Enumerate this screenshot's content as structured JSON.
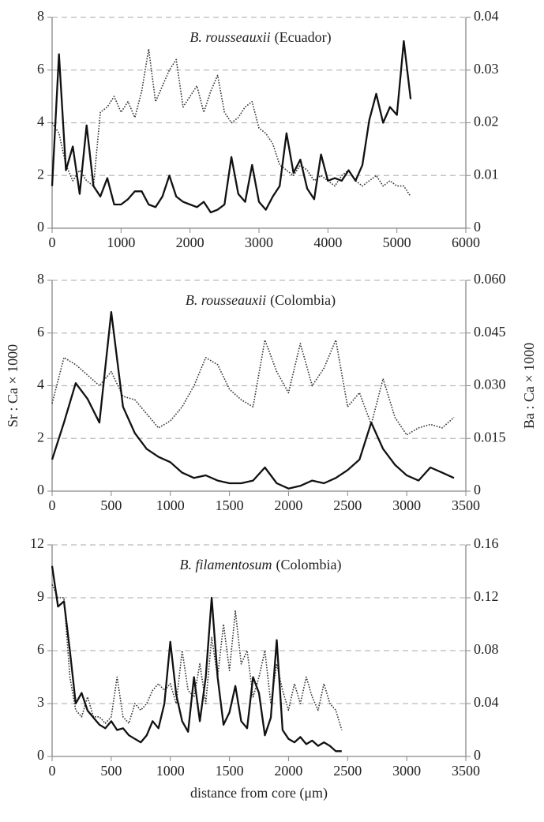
{
  "chart_data": [
    {
      "type": "line",
      "title_species": "B. rousseauxii",
      "title_origin": "(Ecuador)",
      "x": [
        0,
        100,
        200,
        300,
        400,
        500,
        600,
        700,
        800,
        900,
        1000,
        1100,
        1200,
        1300,
        1400,
        1500,
        1600,
        1700,
        1800,
        1900,
        2000,
        2100,
        2200,
        2300,
        2400,
        2500,
        2600,
        2700,
        2800,
        2900,
        3000,
        3100,
        3200,
        3300,
        3400,
        3500,
        3600,
        3700,
        3800,
        3900,
        4000,
        4100,
        4200,
        4300,
        4400,
        4500,
        4600,
        4700,
        4800,
        4900,
        5000,
        5100,
        5200
      ],
      "series": [
        {
          "color": "#111111",
          "style": "solid",
          "axis": "y",
          "values": [
            1.6,
            6.6,
            2.2,
            3.1,
            1.3,
            3.9,
            1.6,
            1.2,
            1.9,
            0.9,
            0.9,
            1.1,
            1.4,
            1.4,
            0.9,
            0.8,
            1.2,
            2.0,
            1.2,
            1.0,
            0.9,
            0.8,
            1.0,
            0.6,
            0.7,
            0.9,
            2.7,
            1.3,
            1.0,
            2.4,
            1.0,
            0.7,
            1.2,
            1.6,
            3.6,
            2.1,
            2.6,
            1.5,
            1.1,
            2.8,
            1.8,
            1.9,
            1.8,
            2.2,
            1.8,
            2.4,
            4.1,
            5.1,
            4.0,
            4.6,
            4.3,
            7.1,
            4.9
          ]
        },
        {
          "color": "#333333",
          "style": "dotted",
          "axis": "y2",
          "values": [
            0.02,
            0.018,
            0.012,
            0.009,
            0.011,
            0.009,
            0.008,
            0.022,
            0.023,
            0.025,
            0.022,
            0.024,
            0.021,
            0.026,
            0.034,
            0.024,
            0.027,
            0.03,
            0.032,
            0.023,
            0.025,
            0.027,
            0.022,
            0.026,
            0.029,
            0.022,
            0.02,
            0.021,
            0.023,
            0.024,
            0.019,
            0.018,
            0.016,
            0.012,
            0.011,
            0.01,
            0.012,
            0.011,
            0.009,
            0.01,
            0.009,
            0.008,
            0.01,
            0.011,
            0.009,
            0.008,
            0.009,
            0.01,
            0.008,
            0.009,
            0.008,
            0.008,
            0.006
          ]
        }
      ],
      "xlim": [
        0,
        6000
      ],
      "xticks": [
        0,
        1000,
        2000,
        3000,
        4000,
        5000,
        6000
      ],
      "ylim": [
        0,
        8
      ],
      "yticks": [
        0,
        2,
        4,
        6,
        8
      ],
      "y2lim": [
        0,
        0.04
      ],
      "y2ticks": [
        0,
        0.01,
        0.02,
        0.03,
        0.04
      ],
      "grid": true
    },
    {
      "type": "line",
      "title_species": "B. rousseauxii",
      "title_origin": "(Colombia)",
      "ylabel": "Sr : Ca × 1000",
      "y2label": "Ba : Ca × 1000",
      "x": [
        0,
        100,
        200,
        300,
        400,
        500,
        600,
        700,
        800,
        900,
        1000,
        1100,
        1200,
        1300,
        1400,
        1500,
        1600,
        1700,
        1800,
        1900,
        2000,
        2100,
        2200,
        2300,
        2400,
        2500,
        2600,
        2700,
        2800,
        2900,
        3000,
        3100,
        3200,
        3300,
        3400
      ],
      "series": [
        {
          "color": "#111111",
          "style": "solid",
          "axis": "y",
          "values": [
            1.2,
            2.6,
            4.1,
            3.5,
            2.6,
            6.8,
            3.2,
            2.2,
            1.6,
            1.3,
            1.1,
            0.7,
            0.5,
            0.6,
            0.4,
            0.3,
            0.3,
            0.4,
            0.9,
            0.3,
            0.1,
            0.2,
            0.4,
            0.3,
            0.5,
            0.8,
            1.2,
            2.6,
            1.6,
            1.0,
            0.6,
            0.4,
            0.9,
            0.7,
            0.5
          ]
        },
        {
          "color": "#333333",
          "style": "dotted",
          "axis": "y2",
          "values": [
            0.025,
            0.038,
            0.036,
            0.033,
            0.03,
            0.034,
            0.027,
            0.026,
            0.022,
            0.018,
            0.02,
            0.024,
            0.03,
            0.038,
            0.036,
            0.029,
            0.026,
            0.024,
            0.043,
            0.034,
            0.028,
            0.042,
            0.03,
            0.035,
            0.043,
            0.024,
            0.028,
            0.019,
            0.032,
            0.021,
            0.016,
            0.018,
            0.019,
            0.018,
            0.021
          ]
        }
      ],
      "xlim": [
        0,
        3500
      ],
      "xticks": [
        0,
        500,
        1000,
        1500,
        2000,
        2500,
        3000,
        3500
      ],
      "ylim": [
        0,
        8
      ],
      "yticks": [
        0,
        2,
        4,
        6,
        8
      ],
      "y2lim": [
        0,
        0.06
      ],
      "y2ticks": [
        0,
        0.015,
        {
          "value": 0.03,
          "label": "0.030"
        },
        0.045,
        {
          "value": 0.06,
          "label": "0.060"
        }
      ],
      "grid": true
    },
    {
      "type": "line",
      "title_species": "B. filamentosum",
      "title_origin": "(Colombia)",
      "xlabel": "distance from core (μm)",
      "x": [
        0,
        50,
        100,
        150,
        200,
        250,
        300,
        350,
        400,
        450,
        500,
        550,
        600,
        650,
        700,
        750,
        800,
        850,
        900,
        950,
        1000,
        1050,
        1100,
        1150,
        1200,
        1250,
        1300,
        1350,
        1400,
        1450,
        1500,
        1550,
        1600,
        1650,
        1700,
        1750,
        1800,
        1850,
        1900,
        1950,
        2000,
        2050,
        2100,
        2150,
        2200,
        2250,
        2300,
        2350,
        2400,
        2450
      ],
      "series": [
        {
          "color": "#111111",
          "style": "solid",
          "axis": "y",
          "values": [
            10.8,
            8.5,
            8.8,
            6.0,
            3.0,
            3.6,
            2.6,
            2.2,
            1.8,
            1.6,
            2.0,
            1.5,
            1.6,
            1.2,
            1.0,
            0.8,
            1.2,
            2.0,
            1.6,
            3.0,
            6.5,
            3.5,
            2.0,
            1.4,
            4.5,
            2.0,
            4.5,
            9.0,
            4.5,
            1.8,
            2.5,
            4.0,
            2.0,
            1.6,
            4.5,
            3.6,
            1.2,
            2.2,
            6.6,
            1.5,
            1.0,
            0.8,
            1.1,
            0.7,
            0.9,
            0.6,
            0.8,
            0.6,
            0.3,
            0.3
          ]
        },
        {
          "color": "#333333",
          "style": "dotted",
          "axis": "y2",
          "values": [
            0.13,
            0.12,
            0.12,
            0.06,
            0.035,
            0.03,
            0.045,
            0.03,
            0.03,
            0.025,
            0.03,
            0.06,
            0.03,
            0.025,
            0.04,
            0.035,
            0.04,
            0.05,
            0.055,
            0.05,
            0.055,
            0.04,
            0.08,
            0.05,
            0.045,
            0.07,
            0.04,
            0.09,
            0.06,
            0.1,
            0.065,
            0.11,
            0.07,
            0.08,
            0.045,
            0.06,
            0.08,
            0.04,
            0.07,
            0.05,
            0.035,
            0.055,
            0.04,
            0.06,
            0.045,
            0.035,
            0.055,
            0.04,
            0.035,
            0.02
          ]
        }
      ],
      "xlim": [
        0,
        3500
      ],
      "xticks": [
        0,
        500,
        1000,
        1500,
        2000,
        2500,
        3000,
        3500
      ],
      "ylim": [
        0,
        12
      ],
      "yticks": [
        0,
        3,
        6,
        9,
        12
      ],
      "y2lim": [
        0,
        0.16
      ],
      "y2ticks": [
        0,
        0.04,
        0.08,
        0.12,
        0.16
      ],
      "grid": true
    }
  ]
}
